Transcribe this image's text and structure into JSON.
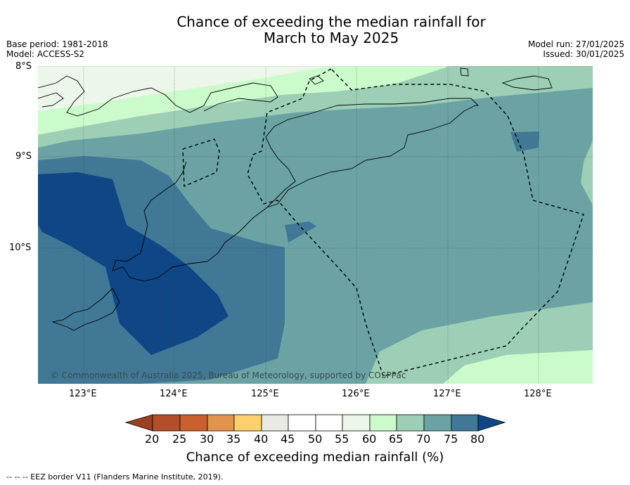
{
  "title": {
    "line1": "Chance of exceeding the median rainfall for",
    "line2": "March to May 2025"
  },
  "meta": {
    "base_period": "Base period: 1981-2018",
    "model": "Model: ACCESS-S2",
    "model_run": "Model run: 27/01/2025",
    "issued": "Issued: 30/01/2025"
  },
  "map": {
    "latitude_labels": [
      "8°S",
      "9°S",
      "10°S"
    ],
    "longitude_labels": [
      "123°E",
      "124°E",
      "125°E",
      "126°E",
      "127°E",
      "128°E"
    ],
    "extent": {
      "lon": [
        122.5,
        128.6
      ],
      "lat": [
        -11.5,
        -8.0
      ]
    },
    "gridlines": true,
    "copyright": "© Commonwealth of Australia 2025, Bureau of Meteorology, supported by COSPPac",
    "palette": {
      "c20": "#b44d2a",
      "c25": "#c9602e",
      "c30": "#e2944c",
      "c35": "#fdd06b",
      "c40": "#eaeae4",
      "c45": "#ffffff",
      "c50": "#ffffff",
      "c55": "#ecf6ea",
      "c60": "#cbfbcb",
      "c65": "#9ccfb6",
      "c70": "#6ba3a4",
      "c75": "#407896",
      "c80": "#0f4786"
    }
  },
  "colorbar": {
    "ticks": [
      "20",
      "25",
      "30",
      "35",
      "40",
      "45",
      "50",
      "55",
      "60",
      "65",
      "70",
      "75",
      "80"
    ],
    "title": "Chance of exceeding median rainfall (%)"
  },
  "footnote": "--  --  -- EEZ border V11 (Flanders Marine Institute, 2019)."
}
